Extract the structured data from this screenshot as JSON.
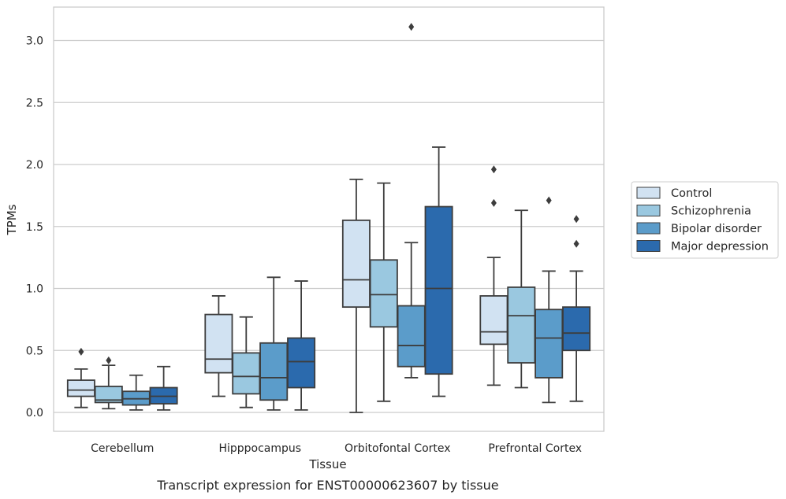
{
  "caption": "Transcript expression for ENST00000623607 by tissue",
  "chart_data": {
    "type": "box",
    "xlabel": "Tissue",
    "ylabel": "TPMs",
    "ylim": [
      -0.15,
      3.27
    ],
    "yticks": [
      0.0,
      0.5,
      1.0,
      1.5,
      2.0,
      2.5,
      3.0
    ],
    "ytick_labels": [
      "0.0",
      "0.5",
      "1.0",
      "1.5",
      "2.0",
      "2.5",
      "3.0"
    ],
    "grid": "horizontal",
    "legend_position": "right-outside",
    "categories": [
      "Cerebellum",
      "Hipppocampus",
      "Orbitofontal Cortex",
      "Prefrontal Cortex"
    ],
    "series": [
      {
        "name": "Control",
        "color": "#d1e2f2",
        "boxes": [
          {
            "whisker_low": 0.04,
            "q1": 0.13,
            "median": 0.18,
            "q3": 0.26,
            "whisker_high": 0.35,
            "outliers": [
              0.49
            ]
          },
          {
            "whisker_low": 0.13,
            "q1": 0.32,
            "median": 0.43,
            "q3": 0.79,
            "whisker_high": 0.94,
            "outliers": []
          },
          {
            "whisker_low": 0.0,
            "q1": 0.85,
            "median": 1.07,
            "q3": 1.55,
            "whisker_high": 1.88,
            "outliers": []
          },
          {
            "whisker_low": 0.22,
            "q1": 0.55,
            "median": 0.65,
            "q3": 0.94,
            "whisker_high": 1.25,
            "outliers": [
              1.69,
              1.96
            ]
          }
        ]
      },
      {
        "name": "Schizophrenia",
        "color": "#9ac8e0",
        "boxes": [
          {
            "whisker_low": 0.03,
            "q1": 0.08,
            "median": 0.1,
            "q3": 0.21,
            "whisker_high": 0.38,
            "outliers": [
              0.42
            ]
          },
          {
            "whisker_low": 0.04,
            "q1": 0.15,
            "median": 0.29,
            "q3": 0.48,
            "whisker_high": 0.77,
            "outliers": []
          },
          {
            "whisker_low": 0.09,
            "q1": 0.69,
            "median": 0.95,
            "q3": 1.23,
            "whisker_high": 1.85,
            "outliers": []
          },
          {
            "whisker_low": 0.2,
            "q1": 0.4,
            "median": 0.78,
            "q3": 1.01,
            "whisker_high": 1.63,
            "outliers": []
          }
        ]
      },
      {
        "name": "Bipolar disorder",
        "color": "#5b9cca",
        "boxes": [
          {
            "whisker_low": 0.02,
            "q1": 0.06,
            "median": 0.11,
            "q3": 0.17,
            "whisker_high": 0.3,
            "outliers": []
          },
          {
            "whisker_low": 0.02,
            "q1": 0.1,
            "median": 0.28,
            "q3": 0.56,
            "whisker_high": 1.09,
            "outliers": []
          },
          {
            "whisker_low": 0.28,
            "q1": 0.37,
            "median": 0.54,
            "q3": 0.86,
            "whisker_high": 1.37,
            "outliers": [
              3.11
            ]
          },
          {
            "whisker_low": 0.08,
            "q1": 0.28,
            "median": 0.6,
            "q3": 0.83,
            "whisker_high": 1.14,
            "outliers": [
              1.71
            ]
          }
        ]
      },
      {
        "name": "Major depression",
        "color": "#2b6aad",
        "boxes": [
          {
            "whisker_low": 0.02,
            "q1": 0.07,
            "median": 0.13,
            "q3": 0.2,
            "whisker_high": 0.37,
            "outliers": []
          },
          {
            "whisker_low": 0.02,
            "q1": 0.2,
            "median": 0.41,
            "q3": 0.6,
            "whisker_high": 1.06,
            "outliers": []
          },
          {
            "whisker_low": 0.13,
            "q1": 0.31,
            "median": 1.0,
            "q3": 1.66,
            "whisker_high": 2.14,
            "outliers": []
          },
          {
            "whisker_low": 0.09,
            "q1": 0.5,
            "median": 0.64,
            "q3": 0.85,
            "whisker_high": 1.14,
            "outliers": [
              1.36,
              1.56
            ]
          }
        ]
      }
    ]
  }
}
